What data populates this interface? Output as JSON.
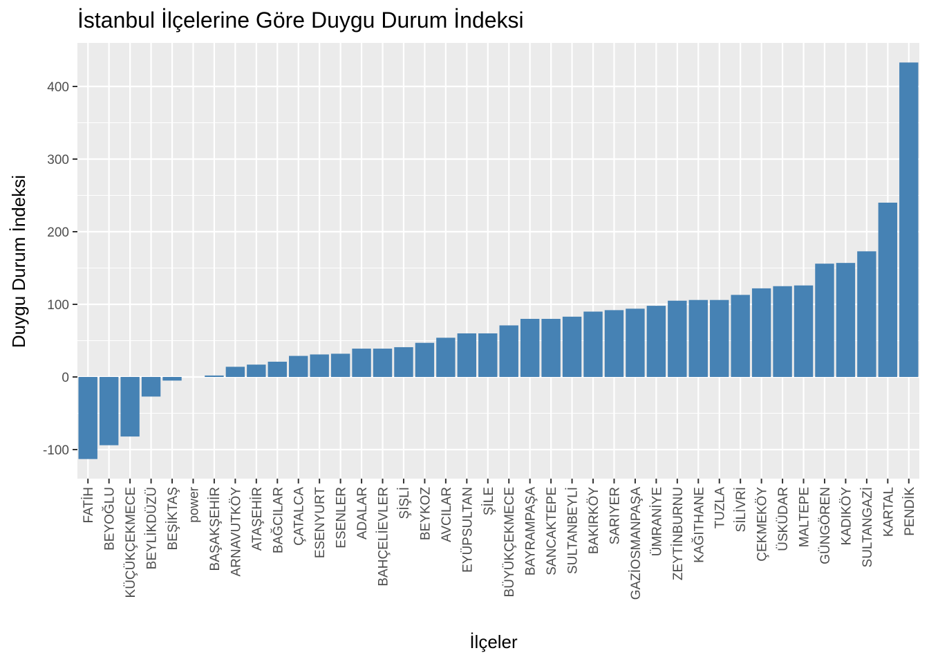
{
  "chart_data": {
    "type": "bar",
    "title": "İstanbul İlçelerine Göre Duygu Durum İndeksi",
    "xlabel": "İlçeler",
    "ylabel": "Duygu Durum İndeksi",
    "ylim": [
      -140,
      460
    ],
    "yticks": [
      -100,
      0,
      100,
      200,
      300,
      400
    ],
    "ytick_labels": [
      "-100",
      "0",
      "100",
      "200",
      "300",
      "400"
    ],
    "grid": true,
    "bar_color": "#4682b4",
    "panel_color": "#ebebeb",
    "categories": [
      "FATİH",
      "BEYOĞLU",
      "KÜÇÜKÇEKMECE",
      "BEYLİKDÜZÜ",
      "BEŞİKTAŞ",
      "power",
      "BAŞAKŞEHİR",
      "ARNAVUTKÖY",
      "ATAŞEHİR",
      "BAĞCILAR",
      "ÇATALCA",
      "ESENYURT",
      "ESENLER",
      "ADALAR",
      "BAHÇELİEVLER",
      "ŞİŞLİ",
      "BEYKOZ",
      "AVCILAR",
      "EYÜPSULTAN",
      "ŞİLE",
      "BÜYÜKÇEKMECE",
      "BAYRAMPAŞA",
      "SANCAKTEPE",
      "SULTANBEYLİ",
      "BAKIRKÖY",
      "SARIYER",
      "GAZİOSMANPAŞA",
      "ÜMRANİYE",
      "ZEYTİNBURNU",
      "KAĞITHANE",
      "TUZLA",
      "SİLİVRİ",
      "ÇEKMEKÖY",
      "ÜSKÜDAR",
      "MALTEPE",
      "GÜNGÖREN",
      "KADIKÖY",
      "SULTANGAZİ",
      "KARTAL",
      "PENDİK"
    ],
    "values": [
      -113,
      -94,
      -82,
      -27,
      -5,
      0,
      2,
      14,
      17,
      21,
      29,
      31,
      32,
      39,
      39,
      41,
      47,
      54,
      60,
      60,
      71,
      80,
      80,
      83,
      90,
      92,
      94,
      98,
      105,
      106,
      106,
      113,
      122,
      125,
      126,
      156,
      157,
      173,
      240,
      433
    ]
  }
}
